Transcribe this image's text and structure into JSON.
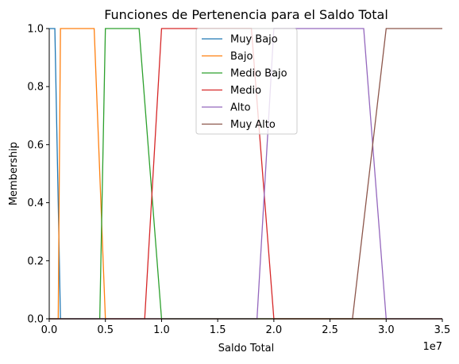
{
  "chart_data": {
    "type": "line",
    "title": "Funciones de Pertenencia para el Saldo Total",
    "xlabel": "Saldo Total",
    "ylabel": "Membership",
    "x_offset_label": "1e7",
    "xlim": [
      0,
      3.5
    ],
    "ylim": [
      0,
      1.0
    ],
    "x_ticks": [
      0,
      0.5,
      1.0,
      1.5,
      2.0,
      2.5,
      3.0,
      3.5
    ],
    "x_tick_labels": [
      "0.0",
      "0.5",
      "1.0",
      "1.5",
      "2.0",
      "2.5",
      "3.0",
      "3.5"
    ],
    "y_ticks": [
      0,
      0.2,
      0.4,
      0.6,
      0.8,
      1.0
    ],
    "y_tick_labels": [
      "0.0",
      "0.2",
      "0.4",
      "0.6",
      "0.8",
      "1.0"
    ],
    "legend_position": "top-center",
    "grid": false,
    "series": [
      {
        "name": "Muy Bajo",
        "color": "#1f77b4",
        "x": [
          0,
          0.05,
          0.1,
          3.5
        ],
        "y": [
          1,
          1,
          0,
          0
        ]
      },
      {
        "name": "Bajo",
        "color": "#ff7f0e",
        "x": [
          0,
          0.08,
          0.1,
          0.4,
          0.5,
          3.5
        ],
        "y": [
          0,
          0,
          1,
          1,
          0,
          0
        ]
      },
      {
        "name": "Medio Bajo",
        "color": "#2ca02c",
        "x": [
          0,
          0.45,
          0.5,
          0.8,
          1.0,
          3.5
        ],
        "y": [
          0,
          0,
          1,
          1,
          0,
          0
        ]
      },
      {
        "name": "Medio",
        "color": "#d62728",
        "x": [
          0,
          0.85,
          1.0,
          1.8,
          2.0,
          3.5
        ],
        "y": [
          0,
          0,
          1,
          1,
          0,
          0
        ]
      },
      {
        "name": "Alto",
        "color": "#9467bd",
        "x": [
          0,
          1.85,
          2.0,
          2.8,
          3.0,
          3.5
        ],
        "y": [
          0,
          0,
          1,
          1,
          0,
          0
        ]
      },
      {
        "name": "Muy Alto",
        "color": "#8c564b",
        "x": [
          0,
          2.7,
          3.0,
          3.5
        ],
        "y": [
          0,
          0,
          1,
          1
        ]
      }
    ]
  }
}
